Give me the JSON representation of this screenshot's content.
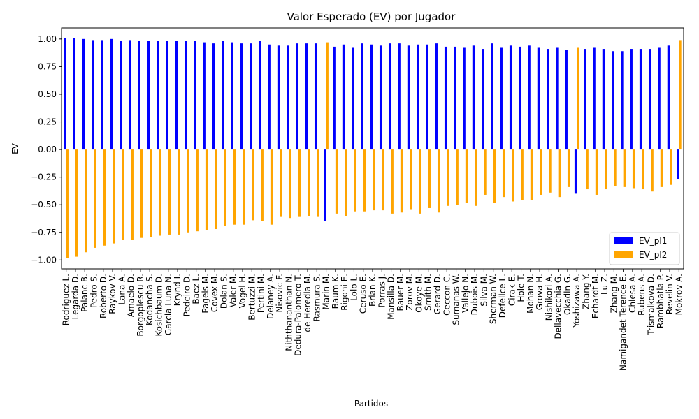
{
  "chart_data": {
    "type": "bar",
    "title": "Valor Esperado (EV) por Jugador",
    "xlabel": "Partidos",
    "ylabel": "EV",
    "categories": [
      "Rodriguez L.",
      "Legarda D.",
      "Palanc B.",
      "Pedro S.",
      "Roberto D.",
      "Raykov V.",
      "Lana A.",
      "Amaelo D.",
      "Borgoplescu R.",
      "Kodancha S.",
      "Kosichbaum D.",
      "Garcia Luna N.",
      "Krynd I.",
      "Pedeiro D.",
      "Baez L.",
      "Pagels M.",
      "Covex M.",
      "Dolan S.",
      "Valer M.",
      "Vogel H.",
      "Bertuzzi M.",
      "Pertini M.",
      "Delaney A.",
      "Nisovic F.",
      "Niththananthan N.",
      "Dedura-Palomero T.",
      "de Heredia M.",
      "Rasmura S.",
      "Marin M.",
      "Baum K.",
      "Rigoni E.",
      "Lolo L.",
      "Ceruso E.",
      "Brian K.",
      "Porras J.",
      "Mansilla D.",
      "Bauer M.",
      "Zorov M.",
      "Okoye M.",
      "Smith M.",
      "Gerard D.",
      "Ceccon C.",
      "Sumanas W.",
      "Vallejo N.",
      "Dubois M.",
      "Silva M.",
      "Sherman W.",
      "Defelice L.",
      "Cirak E.",
      "Hole T.",
      "Mohan N.",
      "Grova H.",
      "Nishikori A.",
      "Dellavecchia G.",
      "Okadin G.",
      "Yoshizawa A.",
      "Zhang Y.",
      "Echardt M.",
      "Lu Z.",
      "Zhang M.",
      "Namigandet Terence E.",
      "Chiesa A.",
      "Rubens A.",
      "Trismalkova D.",
      "Rambhatla P.",
      "Revelin V.",
      "Mokrov A."
    ],
    "series": [
      {
        "name": "EV_pl1",
        "color": "#0000ff",
        "values": [
          1.01,
          1.01,
          1.0,
          0.99,
          0.99,
          1.0,
          0.98,
          0.99,
          0.98,
          0.98,
          0.98,
          0.98,
          0.98,
          0.98,
          0.98,
          0.97,
          0.96,
          0.98,
          0.97,
          0.96,
          0.96,
          0.98,
          0.95,
          0.94,
          0.94,
          0.96,
          0.96,
          0.96,
          -0.65,
          0.93,
          0.95,
          0.92,
          0.96,
          0.95,
          0.94,
          0.96,
          0.96,
          0.94,
          0.95,
          0.95,
          0.96,
          0.93,
          0.93,
          0.92,
          0.94,
          0.91,
          0.96,
          0.92,
          0.94,
          0.93,
          0.94,
          0.92,
          0.91,
          0.92,
          0.9,
          -0.4,
          0.91,
          0.92,
          0.91,
          0.89,
          0.89,
          0.91,
          0.91,
          0.91,
          0.92,
          0.94,
          -0.27
        ]
      },
      {
        "name": "EV_pl2",
        "color": "#ffa500",
        "values": [
          -0.98,
          -0.97,
          -0.93,
          -0.89,
          -0.87,
          -0.85,
          -0.82,
          -0.82,
          -0.8,
          -0.79,
          -0.78,
          -0.77,
          -0.77,
          -0.75,
          -0.74,
          -0.73,
          -0.72,
          -0.69,
          -0.68,
          -0.68,
          -0.64,
          -0.65,
          -0.68,
          -0.61,
          -0.62,
          -0.61,
          -0.6,
          -0.61,
          0.97,
          -0.58,
          -0.6,
          -0.56,
          -0.56,
          -0.55,
          -0.55,
          -0.58,
          -0.57,
          -0.54,
          -0.58,
          -0.53,
          -0.57,
          -0.51,
          -0.5,
          -0.48,
          -0.51,
          -0.41,
          -0.48,
          -0.43,
          -0.47,
          -0.46,
          -0.46,
          -0.41,
          -0.39,
          -0.43,
          -0.34,
          0.92,
          -0.36,
          -0.41,
          -0.36,
          -0.33,
          -0.34,
          -0.35,
          -0.36,
          -0.38,
          -0.34,
          -0.32,
          0.99
        ]
      }
    ],
    "ylim": [
      -1.08,
      1.1
    ],
    "yticks": [
      {
        "value": -1,
        "label": "−1.00"
      },
      {
        "value": -0.75,
        "label": "−0.75"
      },
      {
        "value": -0.5,
        "label": "−0.50"
      },
      {
        "value": -0.25,
        "label": "−0.25"
      },
      {
        "value": 0,
        "label": "0.00"
      },
      {
        "value": 0.25,
        "label": "0.25"
      },
      {
        "value": 0.5,
        "label": "0.50"
      },
      {
        "value": 0.75,
        "label": "0.75"
      },
      {
        "value": 1,
        "label": "1.00"
      }
    ],
    "legend": "lower right"
  }
}
